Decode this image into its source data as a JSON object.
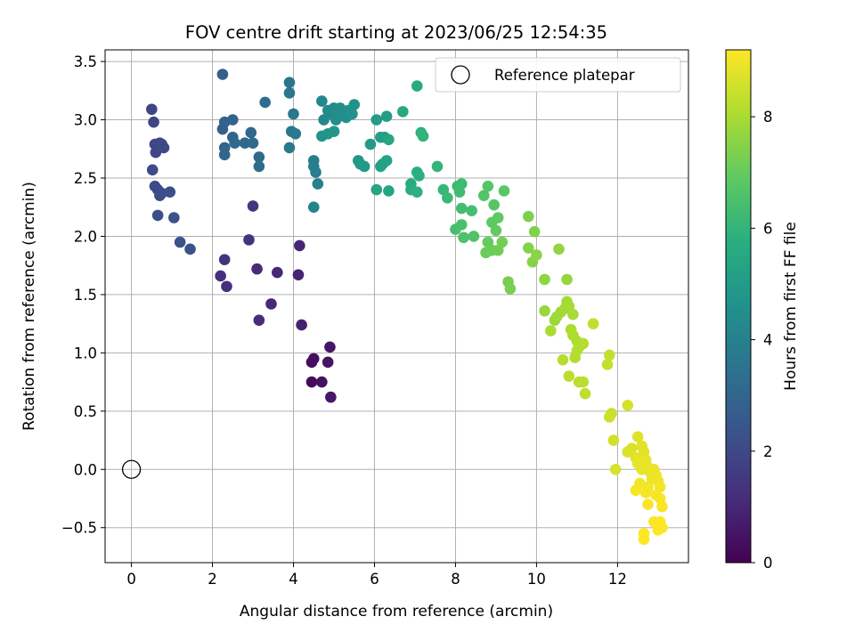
{
  "chart_data": {
    "type": "scatter",
    "title": "FOV centre drift starting at 2023/06/25 12:54:35",
    "xlabel": "Angular distance from reference (arcmin)",
    "ylabel": "Rotation from reference (arcmin)",
    "xlim": [
      -0.65,
      13.75
    ],
    "ylim": [
      -0.8,
      3.6
    ],
    "xticks": [
      0,
      2,
      4,
      6,
      8,
      10,
      12
    ],
    "yticks": [
      -0.5,
      0.0,
      0.5,
      1.0,
      1.5,
      2.0,
      2.5,
      3.0,
      3.5
    ],
    "ytick_labels": [
      "−0.5",
      "0.0",
      "0.5",
      "1.0",
      "1.5",
      "2.0",
      "2.5",
      "3.0",
      "3.5"
    ],
    "grid": true,
    "legend": {
      "placement": "top-right",
      "label": "Reference platepar"
    },
    "reference_point": {
      "x": 0.0,
      "y": 0.0
    },
    "colorbar": {
      "label": "Hours from first FF file",
      "range": [
        0,
        9.2
      ],
      "ticks": [
        0,
        2,
        4,
        6,
        8
      ],
      "colormap": "viridis"
    },
    "points": [
      [
        4.45,
        0.75,
        0.3
      ],
      [
        4.45,
        0.92,
        0.35
      ],
      [
        4.5,
        0.95,
        0.4
      ],
      [
        4.7,
        0.75,
        0.45
      ],
      [
        4.85,
        0.92,
        0.5
      ],
      [
        4.9,
        1.05,
        0.55
      ],
      [
        4.92,
        0.62,
        0.6
      ],
      [
        4.2,
        1.24,
        0.8
      ],
      [
        4.12,
        1.67,
        0.9
      ],
      [
        4.15,
        1.92,
        0.95
      ],
      [
        3.6,
        1.69,
        1.0
      ],
      [
        3.45,
        1.42,
        1.05
      ],
      [
        3.1,
        1.72,
        1.1
      ],
      [
        3.15,
        1.28,
        1.15
      ],
      [
        2.35,
        1.57,
        1.2
      ],
      [
        2.2,
        1.66,
        1.25
      ],
      [
        2.3,
        1.8,
        1.3
      ],
      [
        2.9,
        1.97,
        1.35
      ],
      [
        3.0,
        2.26,
        1.4
      ],
      [
        0.5,
        3.09,
        1.9
      ],
      [
        0.55,
        2.98,
        1.92
      ],
      [
        0.58,
        2.79,
        1.95
      ],
      [
        0.6,
        2.72,
        1.97
      ],
      [
        0.7,
        2.8,
        2.0
      ],
      [
        0.75,
        2.79,
        2.02
      ],
      [
        0.8,
        2.76,
        2.05
      ],
      [
        0.52,
        2.57,
        2.07
      ],
      [
        0.58,
        2.43,
        2.1
      ],
      [
        0.65,
        2.4,
        2.12
      ],
      [
        0.7,
        2.35,
        2.15
      ],
      [
        0.75,
        2.37,
        2.17
      ],
      [
        0.95,
        2.38,
        2.2
      ],
      [
        0.65,
        2.18,
        2.22
      ],
      [
        1.05,
        2.16,
        2.25
      ],
      [
        1.2,
        1.95,
        2.3
      ],
      [
        1.45,
        1.89,
        2.35
      ],
      [
        2.25,
        3.39,
        2.8
      ],
      [
        2.25,
        2.92,
        2.85
      ],
      [
        2.3,
        2.98,
        2.9
      ],
      [
        2.5,
        3.0,
        2.95
      ],
      [
        2.3,
        2.76,
        3.0
      ],
      [
        2.3,
        2.7,
        3.02
      ],
      [
        2.5,
        2.85,
        3.05
      ],
      [
        2.55,
        2.8,
        3.08
      ],
      [
        2.8,
        2.8,
        3.1
      ],
      [
        2.95,
        2.89,
        3.12
      ],
      [
        3.0,
        2.8,
        3.15
      ],
      [
        3.15,
        2.68,
        3.18
      ],
      [
        3.15,
        2.6,
        3.2
      ],
      [
        3.3,
        3.15,
        3.25
      ],
      [
        3.9,
        3.32,
        3.5
      ],
      [
        3.9,
        3.23,
        3.55
      ],
      [
        4.0,
        3.05,
        3.6
      ],
      [
        3.95,
        2.9,
        3.65
      ],
      [
        4.05,
        2.88,
        3.7
      ],
      [
        3.9,
        2.76,
        3.75
      ],
      [
        4.5,
        2.65,
        3.85
      ],
      [
        4.5,
        2.6,
        3.9
      ],
      [
        4.55,
        2.55,
        3.95
      ],
      [
        4.6,
        2.45,
        4.0
      ],
      [
        4.5,
        2.25,
        4.05
      ],
      [
        4.7,
        3.16,
        4.2
      ],
      [
        4.75,
        3.0,
        4.25
      ],
      [
        4.85,
        3.08,
        4.3
      ],
      [
        4.9,
        3.05,
        4.35
      ],
      [
        5.0,
        3.1,
        4.38
      ],
      [
        5.05,
        3.0,
        4.4
      ],
      [
        5.1,
        3.05,
        4.45
      ],
      [
        5.15,
        3.1,
        4.48
      ],
      [
        5.2,
        3.05,
        4.5
      ],
      [
        5.3,
        3.02,
        4.55
      ],
      [
        5.35,
        3.08,
        4.6
      ],
      [
        5.45,
        3.05,
        4.62
      ],
      [
        5.5,
        3.13,
        4.65
      ],
      [
        4.7,
        2.86,
        4.7
      ],
      [
        4.85,
        2.88,
        4.75
      ],
      [
        5.0,
        2.9,
        4.8
      ],
      [
        5.6,
        2.65,
        4.85
      ],
      [
        5.65,
        2.62,
        4.9
      ],
      [
        5.75,
        2.6,
        4.95
      ],
      [
        5.9,
        2.79,
        5.0
      ],
      [
        6.05,
        3.0,
        5.05
      ],
      [
        6.15,
        2.85,
        5.1
      ],
      [
        6.3,
        3.03,
        5.12
      ],
      [
        6.25,
        2.85,
        5.15
      ],
      [
        6.15,
        2.6,
        5.2
      ],
      [
        6.2,
        2.62,
        5.25
      ],
      [
        6.3,
        2.65,
        5.3
      ],
      [
        6.05,
        2.4,
        5.35
      ],
      [
        6.35,
        2.39,
        5.4
      ],
      [
        6.35,
        2.83,
        5.45
      ],
      [
        6.7,
        3.07,
        5.5
      ],
      [
        7.05,
        3.29,
        5.6
      ],
      [
        6.9,
        2.45,
        5.65
      ],
      [
        6.9,
        2.4,
        5.7
      ],
      [
        7.05,
        2.55,
        5.75
      ],
      [
        7.1,
        2.52,
        5.8
      ],
      [
        7.05,
        2.38,
        5.85
      ],
      [
        7.15,
        2.89,
        5.9
      ],
      [
        7.2,
        2.86,
        5.95
      ],
      [
        7.55,
        2.6,
        6.0
      ],
      [
        7.7,
        2.4,
        6.1
      ],
      [
        7.8,
        2.33,
        6.15
      ],
      [
        8.05,
        2.43,
        6.2
      ],
      [
        8.15,
        2.45,
        6.25
      ],
      [
        8.1,
        2.38,
        6.3
      ],
      [
        8.15,
        2.24,
        6.35
      ],
      [
        8.4,
        2.22,
        6.4
      ],
      [
        8.0,
        2.06,
        6.45
      ],
      [
        8.15,
        2.1,
        6.5
      ],
      [
        8.2,
        1.99,
        6.55
      ],
      [
        8.45,
        2.0,
        6.6
      ],
      [
        8.7,
        2.35,
        6.65
      ],
      [
        8.8,
        2.43,
        6.7
      ],
      [
        8.95,
        2.27,
        6.75
      ],
      [
        9.2,
        2.39,
        6.8
      ],
      [
        8.9,
        2.12,
        6.85
      ],
      [
        9.05,
        2.16,
        6.9
      ],
      [
        9.0,
        2.05,
        6.95
      ],
      [
        8.8,
        1.95,
        7.0
      ],
      [
        8.75,
        1.86,
        7.05
      ],
      [
        8.9,
        1.88,
        7.1
      ],
      [
        9.05,
        1.88,
        7.15
      ],
      [
        9.15,
        1.95,
        7.2
      ],
      [
        9.3,
        1.61,
        7.25
      ],
      [
        9.35,
        1.55,
        7.3
      ],
      [
        9.8,
        2.17,
        7.35
      ],
      [
        9.95,
        2.04,
        7.4
      ],
      [
        9.8,
        1.9,
        7.45
      ],
      [
        9.9,
        1.78,
        7.5
      ],
      [
        10.0,
        1.84,
        7.55
      ],
      [
        10.2,
        1.63,
        7.6
      ],
      [
        10.55,
        1.89,
        7.65
      ],
      [
        10.75,
        1.63,
        7.7
      ],
      [
        10.2,
        1.36,
        7.75
      ],
      [
        10.45,
        1.28,
        7.8
      ],
      [
        10.5,
        1.31,
        7.85
      ],
      [
        10.6,
        1.35,
        7.88
      ],
      [
        10.7,
        1.38,
        7.9
      ],
      [
        10.75,
        1.44,
        7.92
      ],
      [
        10.8,
        1.4,
        7.95
      ],
      [
        10.9,
        1.33,
        7.97
      ],
      [
        10.35,
        1.19,
        8.0
      ],
      [
        10.85,
        1.2,
        8.02
      ],
      [
        10.9,
        1.15,
        8.05
      ],
      [
        11.0,
        1.1,
        8.07
      ],
      [
        11.05,
        1.05,
        8.1
      ],
      [
        10.95,
        0.96,
        8.12
      ],
      [
        11.15,
        1.08,
        8.15
      ],
      [
        11.0,
        1.02,
        8.17
      ],
      [
        10.65,
        0.94,
        8.2
      ],
      [
        10.8,
        0.8,
        8.22
      ],
      [
        11.05,
        0.75,
        8.25
      ],
      [
        11.15,
        0.75,
        8.27
      ],
      [
        11.2,
        0.65,
        8.3
      ],
      [
        11.4,
        1.25,
        8.32
      ],
      [
        11.8,
        0.98,
        8.35
      ],
      [
        11.75,
        0.9,
        8.4
      ],
      [
        11.85,
        0.48,
        8.45
      ],
      [
        11.8,
        0.45,
        8.5
      ],
      [
        11.9,
        0.25,
        8.55
      ],
      [
        12.25,
        0.55,
        8.6
      ],
      [
        11.95,
        0.0,
        8.65
      ],
      [
        12.25,
        0.15,
        8.7
      ],
      [
        12.35,
        0.18,
        8.72
      ],
      [
        12.5,
        0.28,
        8.75
      ],
      [
        12.6,
        0.2,
        8.77
      ],
      [
        12.65,
        0.15,
        8.8
      ],
      [
        12.45,
        0.1,
        8.82
      ],
      [
        12.5,
        0.05,
        8.84
      ],
      [
        12.6,
        0.0,
        8.86
      ],
      [
        12.7,
        0.08,
        8.88
      ],
      [
        12.75,
        0.02,
        8.9
      ],
      [
        12.8,
        -0.02,
        8.92
      ],
      [
        12.9,
        0.0,
        8.94
      ],
      [
        12.85,
        -0.08,
        8.96
      ],
      [
        12.95,
        -0.05,
        8.98
      ],
      [
        13.0,
        -0.1,
        9.0
      ],
      [
        13.05,
        -0.15,
        9.02
      ],
      [
        12.75,
        -0.15,
        9.04
      ],
      [
        12.55,
        -0.12,
        9.06
      ],
      [
        12.45,
        -0.18,
        9.08
      ],
      [
        12.7,
        -0.2,
        9.1
      ],
      [
        12.95,
        -0.22,
        9.11
      ],
      [
        13.05,
        -0.25,
        9.12
      ],
      [
        13.1,
        -0.32,
        9.13
      ],
      [
        12.75,
        -0.3,
        9.14
      ],
      [
        12.9,
        -0.45,
        9.15
      ],
      [
        13.05,
        -0.45,
        9.16
      ],
      [
        13.0,
        -0.52,
        9.17
      ],
      [
        13.1,
        -0.5,
        9.18
      ],
      [
        12.65,
        -0.55,
        9.19
      ],
      [
        12.65,
        -0.6,
        9.2
      ]
    ]
  }
}
